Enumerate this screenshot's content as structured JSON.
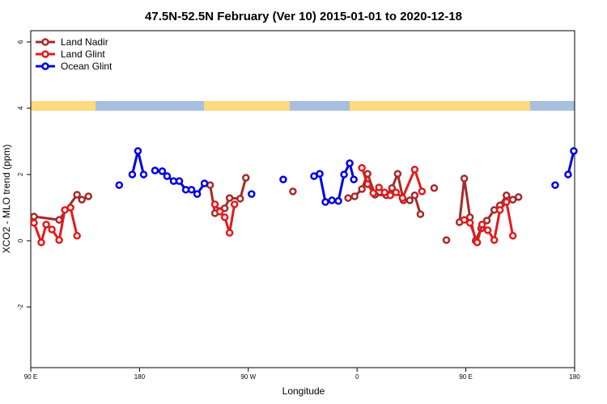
{
  "chart_data": {
    "type": "line",
    "title": "47.5N-52.5N February (Ver 10)   2015-01-01 to 2020-12-18",
    "x_label": "Longitude",
    "y_label": "XCO2 - MLO trend (ppm)",
    "xlim": [
      90,
      540
    ],
    "ylim": [
      -3.83,
      6.34
    ],
    "xticks": [
      {
        "value": 90,
        "label": "90 E"
      },
      {
        "value": 180,
        "label": "180"
      },
      {
        "value": 270,
        "label": "90 W"
      },
      {
        "value": 360,
        "label": "0"
      },
      {
        "value": 450,
        "label": "90 E"
      },
      {
        "value": 540,
        "label": "180"
      }
    ],
    "yticks": [
      -2,
      0,
      2,
      4,
      6
    ],
    "legend": "top-left",
    "series": [
      {
        "name": "Land Nadir",
        "color": "#a52a2a",
        "x": [
          92.7,
          113.5,
          128.3,
          132.3,
          137.7,
          null,
          238.4,
          242.4,
          246.5,
          250.5,
          254.5,
          263.3,
          268.0,
          null,
          306.9,
          null,
          352.6,
          358.0,
          364.0,
          368.7,
          374.8,
          384.2,
          388.9,
          393.6,
          398.3,
          403.6,
          407.7,
          412.4,
          null,
          423.8,
          null,
          433.9,
          null,
          444.7,
          448.7,
          453.4,
          458.1,
          462.7,
          467.4,
          473.5,
          478.2,
          483.6,
          488.9,
          493.6
        ],
        "values": [
          0.73,
          0.63,
          1.39,
          1.24,
          1.34,
          null,
          1.68,
          0.83,
          0.9,
          0.98,
          1.29,
          1.27,
          1.9,
          null,
          1.49,
          null,
          1.29,
          1.34,
          1.56,
          2.02,
          1.39,
          1.37,
          1.59,
          2.02,
          1.22,
          1.22,
          1.37,
          0.8,
          null,
          1.59,
          null,
          0.02,
          null,
          0.56,
          1.88,
          0.71,
          0.0,
          0.37,
          0.61,
          0.93,
          1.07,
          1.37,
          1.24,
          1.32
        ]
      },
      {
        "name": "Land Glint",
        "color": "#e41a1c",
        "x": [
          92.7,
          98.7,
          102.8,
          107.5,
          113.5,
          118.2,
          122.9,
          128.3,
          null,
          242.4,
          246.5,
          250.5,
          254.5,
          258.6,
          null,
          364.0,
          368.7,
          373.4,
          378.1,
          382.8,
          387.5,
          392.2,
          397.6,
          407.7,
          413.7,
          null,
          448.7,
          453.4,
          459.4,
          463.4,
          468.1,
          473.5,
          478.2,
          483.6,
          488.9
        ],
        "values": [
          0.54,
          -0.05,
          0.49,
          0.34,
          0.02,
          0.93,
          1.0,
          0.15,
          null,
          1.1,
          0.88,
          0.71,
          0.24,
          1.1,
          null,
          2.2,
          1.71,
          1.44,
          1.61,
          1.46,
          1.37,
          1.46,
          1.29,
          2.15,
          1.49,
          null,
          0.63,
          0.54,
          -0.05,
          0.49,
          0.32,
          0.02,
          0.93,
          1.17,
          0.15
        ]
      },
      {
        "name": "Ocean Glint",
        "color": "#0000e6",
        "x": [
          163.2,
          null,
          174.0,
          178.7,
          183.4,
          null,
          192.8,
          198.8,
          202.8,
          208.2,
          212.9,
          218.3,
          223.0,
          227.7,
          233.7,
          null,
          272.7,
          null,
          298.9,
          null,
          324.4,
          329.1,
          333.8,
          339.2,
          344.5,
          349.2,
          353.9,
          357.3,
          null,
          523.9,
          null,
          534.6,
          539.3
        ],
        "values": [
          1.68,
          null,
          2.0,
          2.71,
          2.0,
          null,
          2.12,
          2.1,
          1.95,
          1.8,
          1.8,
          1.54,
          1.54,
          1.41,
          1.73,
          null,
          1.41,
          null,
          1.85,
          null,
          1.95,
          2.02,
          1.17,
          1.22,
          1.2,
          2.0,
          2.34,
          1.85,
          null,
          1.68,
          null,
          2.0,
          2.71
        ]
      }
    ]
  }
}
